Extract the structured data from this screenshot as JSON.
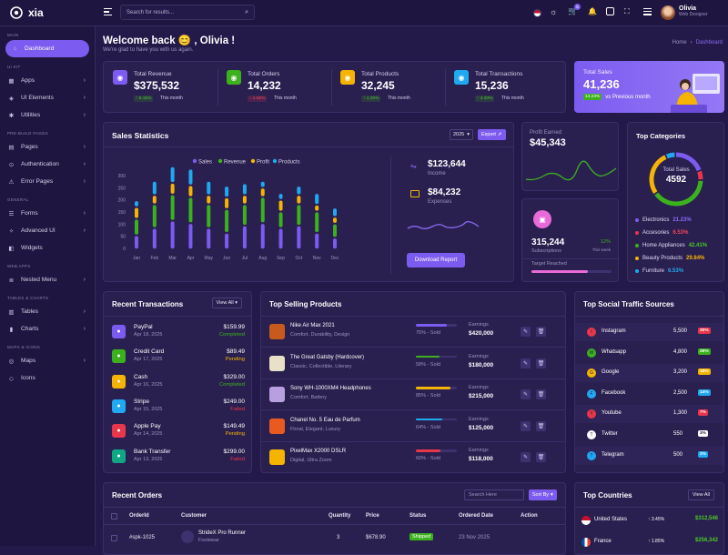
{
  "topbar": {
    "brand": "xia",
    "search_placeholder": "Search for results...",
    "cart_badge": "5",
    "user_name": "Olivia",
    "user_role": "Web Designer"
  },
  "sidebar": {
    "sections": [
      {
        "title": "MAIN",
        "items": [
          {
            "label": "Dashboard",
            "active": true
          }
        ]
      },
      {
        "title": "UI KIT",
        "items": [
          {
            "label": "Apps"
          },
          {
            "label": "UI Elements"
          },
          {
            "label": "Utilities"
          }
        ]
      },
      {
        "title": "PRE-BUILD PAGES",
        "items": [
          {
            "label": "Pages"
          },
          {
            "label": "Authentication"
          },
          {
            "label": "Error Pages"
          }
        ]
      },
      {
        "title": "GENERAL",
        "items": [
          {
            "label": "Forms"
          },
          {
            "label": "Advanced UI"
          },
          {
            "label": "Widgets"
          }
        ]
      },
      {
        "title": "WEB APPS",
        "items": [
          {
            "label": "Nested Menu"
          }
        ]
      },
      {
        "title": "TABLES & CHARTS",
        "items": [
          {
            "label": "Tables"
          },
          {
            "label": "Charts"
          }
        ]
      },
      {
        "title": "MAPS & ICONS",
        "items": [
          {
            "label": "Maps"
          },
          {
            "label": "Icons"
          }
        ]
      }
    ]
  },
  "header": {
    "welcome": "Welcome back 😊 , Olivia !",
    "subtitle": "We're glad to have you with us again.",
    "breadcrumb_home": "Home",
    "breadcrumb_sep": "›",
    "breadcrumb_current": "Dashboard"
  },
  "stats": [
    {
      "label": "Total Revenue",
      "value": "$375,532",
      "change": "5.15%",
      "dir": "up",
      "period": "This month",
      "color": "#7c5cf0"
    },
    {
      "label": "Total Orders",
      "value": "14,232",
      "change": "2.58%",
      "dir": "down",
      "period": "This month",
      "color": "#3cb11e"
    },
    {
      "label": "Total Products",
      "value": "32,245",
      "change": "1.25%",
      "dir": "up",
      "period": "This month",
      "color": "#f5b400"
    },
    {
      "label": "Total Transactions",
      "value": "15,236",
      "change": "4.33%",
      "dir": "up",
      "period": "This month",
      "color": "#20a9f0"
    }
  ],
  "total_sales": {
    "label": "Total Sales",
    "value": "41,236",
    "change": "14.23%",
    "note": "vs Previous month"
  },
  "sales_stats": {
    "title": "Sales Statistics",
    "year": "2025",
    "export_label": "Export",
    "legend": [
      "Sales",
      "Revenue",
      "Profit",
      "Products"
    ],
    "income_value": "$123,644",
    "income_label": "Income",
    "expenses_value": "$84,232",
    "expenses_label": "Expenses",
    "download_label": "Download Report"
  },
  "chart_data": {
    "type": "bar",
    "categories": [
      "Jan",
      "Feb",
      "Mar",
      "Apr",
      "May",
      "Jun",
      "Jul",
      "Aug",
      "Sep",
      "Oct",
      "Nov",
      "Dec"
    ],
    "ylim": [
      0,
      300
    ],
    "yticks": [
      "300",
      "250",
      "200",
      "150",
      "100",
      "50",
      "0"
    ],
    "series": [
      {
        "name": "Sales",
        "color": "#7c5cf0",
        "values": [
          50,
          80,
          110,
          100,
          80,
          60,
          90,
          100,
          80,
          90,
          60,
          40
        ]
      },
      {
        "name": "Revenue",
        "color": "#3cb11e",
        "values": [
          60,
          90,
          100,
          100,
          90,
          90,
          80,
          100,
          60,
          80,
          80,
          50
        ]
      },
      {
        "name": "Profit",
        "color": "#f5b400",
        "values": [
          40,
          30,
          40,
          40,
          30,
          40,
          30,
          30,
          40,
          30,
          20,
          20
        ]
      },
      {
        "name": "Products",
        "color": "#20a9f0",
        "values": [
          20,
          50,
          60,
          60,
          50,
          40,
          40,
          20,
          20,
          30,
          40,
          30
        ]
      }
    ]
  },
  "profit": {
    "label": "Profit Earned",
    "value": "$45,343"
  },
  "subs": {
    "value": "315,244",
    "label": "Subscriptions",
    "change": "12%",
    "period": "This week",
    "target_label": "Target Reached",
    "target_fraction": 0.7
  },
  "categories": {
    "title": "Top Categories",
    "center_label": "Total Sales",
    "center_value": "4592",
    "items": [
      {
        "name": "Electronics",
        "pct": "21.23%",
        "color": "#7c5cf0",
        "pct_color": "#8a6cf5"
      },
      {
        "name": "Accesories",
        "pct": "6.53%",
        "color": "#e8364a",
        "pct_color": "#f0485a"
      },
      {
        "name": "Home Appliances",
        "pct": "42.41%",
        "color": "#3cb11e",
        "pct_color": "#47c826"
      },
      {
        "name": "Beauty Products",
        "pct": "29.84%",
        "color": "#f5b400",
        "pct_color": "#f5b400"
      },
      {
        "name": "Furniture",
        "pct": "6.53%",
        "color": "#20a9f0",
        "pct_color": "#20a9f0"
      }
    ]
  },
  "transactions": {
    "title": "Recent Transactions",
    "view_all": "View All",
    "items": [
      {
        "name": "PayPal",
        "date": "Apr 18, 2025",
        "amount": "$159.99",
        "status": "Completed",
        "status_color": "#3cb11e",
        "color": "#7c5cf0",
        "icon": "paypal-icon"
      },
      {
        "name": "Credit Card",
        "date": "Apr 17, 2025",
        "amount": "$89.49",
        "status": "Pending",
        "status_color": "#f5b400",
        "color": "#3cb11e",
        "icon": "credit-card-icon"
      },
      {
        "name": "Cash",
        "date": "Apr 16, 2025",
        "amount": "$329.00",
        "status": "Completed",
        "status_color": "#3cb11e",
        "color": "#f5b400",
        "icon": "cash-icon"
      },
      {
        "name": "Stripe",
        "date": "Apr 15, 2025",
        "amount": "$249.00",
        "status": "Failed",
        "status_color": "#e8364a",
        "color": "#20a9f0",
        "icon": "stripe-icon"
      },
      {
        "name": "Apple Pay",
        "date": "Apr 14, 2025",
        "amount": "$149.49",
        "status": "Pending",
        "status_color": "#f5b400",
        "color": "#e8364a",
        "icon": "apple-icon"
      },
      {
        "name": "Bank Transfer",
        "date": "Apr 13, 2025",
        "amount": "$299.00",
        "status": "Failed",
        "status_color": "#e8364a",
        "color": "#10a882",
        "icon": "bank-icon"
      }
    ]
  },
  "products": {
    "title": "Top Selling Products",
    "earnings_label": "Earnings",
    "items": [
      {
        "name": "Nike Air Max 2021",
        "meta": "Comfort, Durability, Design",
        "sold": "75% - Sold",
        "fraction": 0.75,
        "bar_color": "#7c5cf0",
        "earnings": "$420,000",
        "thumb": "#c85a1e"
      },
      {
        "name": "The Great Gatsby (Hardcover)",
        "meta": "Classic, Collectible, Literary",
        "sold": "58% - Sold",
        "fraction": 0.58,
        "bar_color": "#3cb11e",
        "earnings": "$180,000",
        "thumb": "#e8e0c8"
      },
      {
        "name": "Sony WH-1000XM4 Headphones",
        "meta": "Comfort, Battery",
        "sold": "85% - Sold",
        "fraction": 0.85,
        "bar_color": "#f5b400",
        "earnings": "$215,000",
        "thumb": "#b8a0e0"
      },
      {
        "name": "Chanel No. 5 Eau de Parfum",
        "meta": "Floral, Elegant, Luxury",
        "sold": "64% - Sold",
        "fraction": 0.64,
        "bar_color": "#20a9f0",
        "earnings": "$125,000",
        "thumb": "#e85a20"
      },
      {
        "name": "PixelMax X2000 DSLR",
        "meta": "Digital, Ultra Zoom",
        "sold": "60% - Sold",
        "fraction": 0.6,
        "bar_color": "#e8364a",
        "earnings": "$118,000",
        "thumb": "#f5b400"
      }
    ]
  },
  "social": {
    "title": "Top Social Traffic Sources",
    "items": [
      {
        "name": "Instagram",
        "value": "5,500",
        "pct": "30%",
        "color": "#e8364a",
        "icon": "instagram-icon"
      },
      {
        "name": "Whatsapp",
        "value": "4,800",
        "pct": "26%",
        "color": "#3cb11e",
        "icon": "whatsapp-icon"
      },
      {
        "name": "Google",
        "value": "3,200",
        "pct": "18%",
        "color": "#f5b400",
        "icon": "google-icon"
      },
      {
        "name": "Facebook",
        "value": "2,500",
        "pct": "14%",
        "color": "#20a9f0",
        "icon": "facebook-icon"
      },
      {
        "name": "Youtube",
        "value": "1,300",
        "pct": "7%",
        "color": "#e8364a",
        "icon": "youtube-icon"
      },
      {
        "name": "Twitter",
        "value": "550",
        "pct": "3%",
        "color": "#ffffff",
        "icon": "twitter-icon"
      },
      {
        "name": "Telegram",
        "value": "500",
        "pct": "2%",
        "color": "#20a9f0",
        "icon": "telegram-icon"
      }
    ]
  },
  "orders": {
    "title": "Recent Orders",
    "search_placeholder": "Search Here",
    "sort_label": "Sort By",
    "columns": [
      "OrderId",
      "Customer",
      "Quantity",
      "Price",
      "Status",
      "Ordered Date",
      "Action"
    ],
    "rows": [
      {
        "id": "#spk-1025",
        "product": "StrideX Pro Runner",
        "category": "Footwear",
        "quantity": "3",
        "price": "$678.90",
        "status": "Shipped",
        "date": "23 Nov 2025"
      }
    ]
  },
  "countries": {
    "title": "Top Countries",
    "view_all": "View All",
    "items": [
      {
        "name": "United States",
        "change": "3.45%",
        "dir": "up",
        "value": "$312,546"
      },
      {
        "name": "France",
        "change": "1.85%",
        "dir": "up",
        "value": "$256,342"
      }
    ]
  }
}
